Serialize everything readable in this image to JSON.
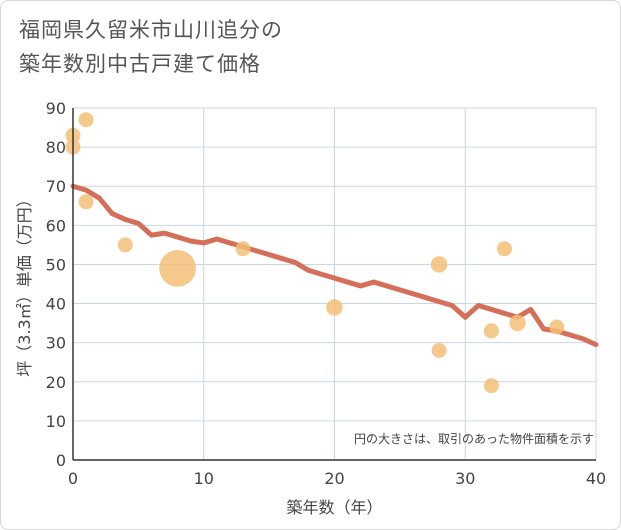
{
  "title_line1": "福岡県久留米市山川追分の",
  "title_line2": "築年数別中古戸建て価格",
  "chart_data": {
    "type": "scatter",
    "title": "福岡県久留米市山川追分の築年数別中古戸建て価格",
    "xlabel": "築年数（年）",
    "ylabel": "坪（3.3㎡）単価（万円）",
    "xlim": [
      0,
      40
    ],
    "ylim": [
      0,
      90
    ],
    "x_ticks": [
      0,
      10,
      20,
      30,
      40
    ],
    "y_ticks": [
      0,
      10,
      20,
      30,
      40,
      50,
      60,
      70,
      80,
      90
    ],
    "grid": true,
    "annotation": "円の大きさは、取引のあった物件面積を示す",
    "colors": {
      "points": "#f2c077",
      "trend": "#d66f5a",
      "grid": "#c9d6e6"
    },
    "points": [
      {
        "x": 0,
        "y": 83,
        "size": 1
      },
      {
        "x": 0,
        "y": 80,
        "size": 1
      },
      {
        "x": 1,
        "y": 87,
        "size": 1
      },
      {
        "x": 1,
        "y": 66,
        "size": 1
      },
      {
        "x": 4,
        "y": 55,
        "size": 1
      },
      {
        "x": 8,
        "y": 49,
        "size": 6
      },
      {
        "x": 13,
        "y": 54,
        "size": 1
      },
      {
        "x": 20,
        "y": 39,
        "size": 1.2
      },
      {
        "x": 28,
        "y": 50,
        "size": 1.2
      },
      {
        "x": 28,
        "y": 28,
        "size": 1
      },
      {
        "x": 32,
        "y": 33,
        "size": 1
      },
      {
        "x": 32,
        "y": 19,
        "size": 1
      },
      {
        "x": 33,
        "y": 54,
        "size": 1
      },
      {
        "x": 34,
        "y": 35,
        "size": 1.2
      },
      {
        "x": 37,
        "y": 34,
        "size": 1
      }
    ],
    "trend": {
      "name": "trend",
      "x": [
        0,
        1,
        2,
        3,
        4,
        5,
        6,
        7,
        8,
        9,
        10,
        11,
        12,
        13,
        14,
        15,
        16,
        17,
        18,
        19,
        20,
        21,
        22,
        23,
        24,
        25,
        26,
        27,
        28,
        29,
        30,
        31,
        32,
        33,
        34,
        35,
        36,
        37,
        38,
        39,
        40
      ],
      "y": [
        70,
        69,
        67,
        63,
        61.5,
        60.5,
        57.5,
        58,
        57,
        56,
        55.5,
        56.5,
        55.5,
        54.5,
        53.5,
        52.5,
        51.5,
        50.5,
        48.5,
        47.5,
        46.5,
        45.5,
        44.5,
        45.5,
        44.5,
        43.5,
        42.5,
        41.5,
        40.5,
        39.5,
        36.5,
        39.5,
        38.5,
        37.5,
        36.5,
        38.5,
        33.5,
        33,
        32,
        31,
        29.5
      ]
    }
  }
}
